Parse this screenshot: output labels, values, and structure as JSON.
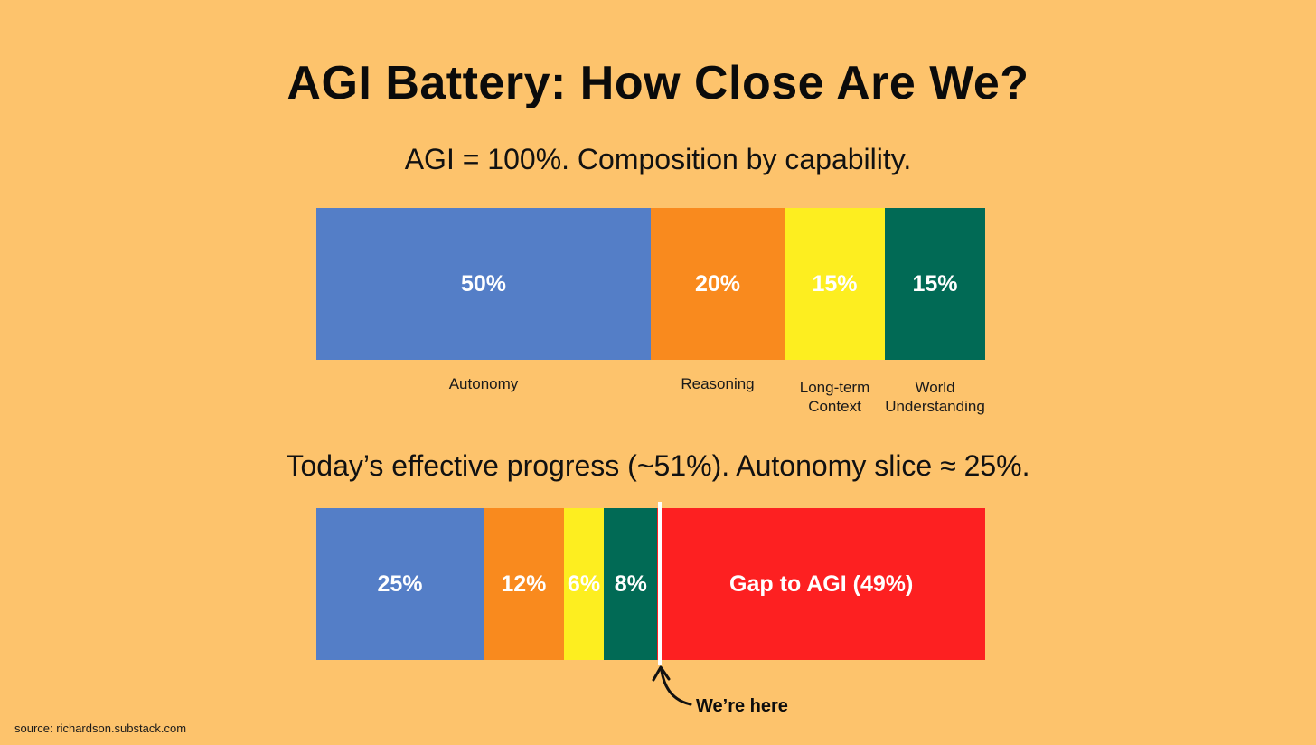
{
  "title": "AGI Battery: How Close Are We?",
  "subtitle1": "AGI = 100%. Composition by capability.",
  "subtitle2": "Today’s effective progress (~51%). Autonomy slice ≈ 25%.",
  "marker_label": "We’re here",
  "source": "source: richardson.substack.com",
  "colors": {
    "background": "#fdc36c",
    "autonomy": "#547ec7",
    "reasoning": "#f98a1e",
    "context": "#fdee20",
    "world": "#016a55",
    "gap": "#fd2021"
  },
  "chart_data": [
    {
      "type": "bar",
      "orientation": "horizontal-stacked",
      "title": "AGI = 100%. Composition by capability.",
      "total": 100,
      "segments": [
        {
          "name": "Autonomy",
          "value": 50,
          "label": "50%",
          "color": "#547ec7"
        },
        {
          "name": "Reasoning",
          "value": 20,
          "label": "20%",
          "color": "#f98a1e"
        },
        {
          "name": "Long-term\nContext",
          "value": 15,
          "label": "15%",
          "color": "#fdee20"
        },
        {
          "name": "World\nUnderstanding",
          "value": 15,
          "label": "15%",
          "color": "#016a55"
        }
      ]
    },
    {
      "type": "bar",
      "orientation": "horizontal-stacked",
      "title": "Today’s effective progress (~51%). Autonomy slice ≈ 25%.",
      "total": 100,
      "segments": [
        {
          "name": "Autonomy",
          "value": 25,
          "label": "25%",
          "color": "#547ec7"
        },
        {
          "name": "Reasoning",
          "value": 12,
          "label": "12%",
          "color": "#f98a1e"
        },
        {
          "name": "Long-term Context",
          "value": 6,
          "label": "6%",
          "color": "#fdee20"
        },
        {
          "name": "World Understanding",
          "value": 8,
          "label": "8%",
          "color": "#016a55"
        },
        {
          "name": "Gap",
          "value": 49,
          "label": "Gap to AGI (49%)",
          "color": "#fd2021"
        }
      ]
    }
  ]
}
